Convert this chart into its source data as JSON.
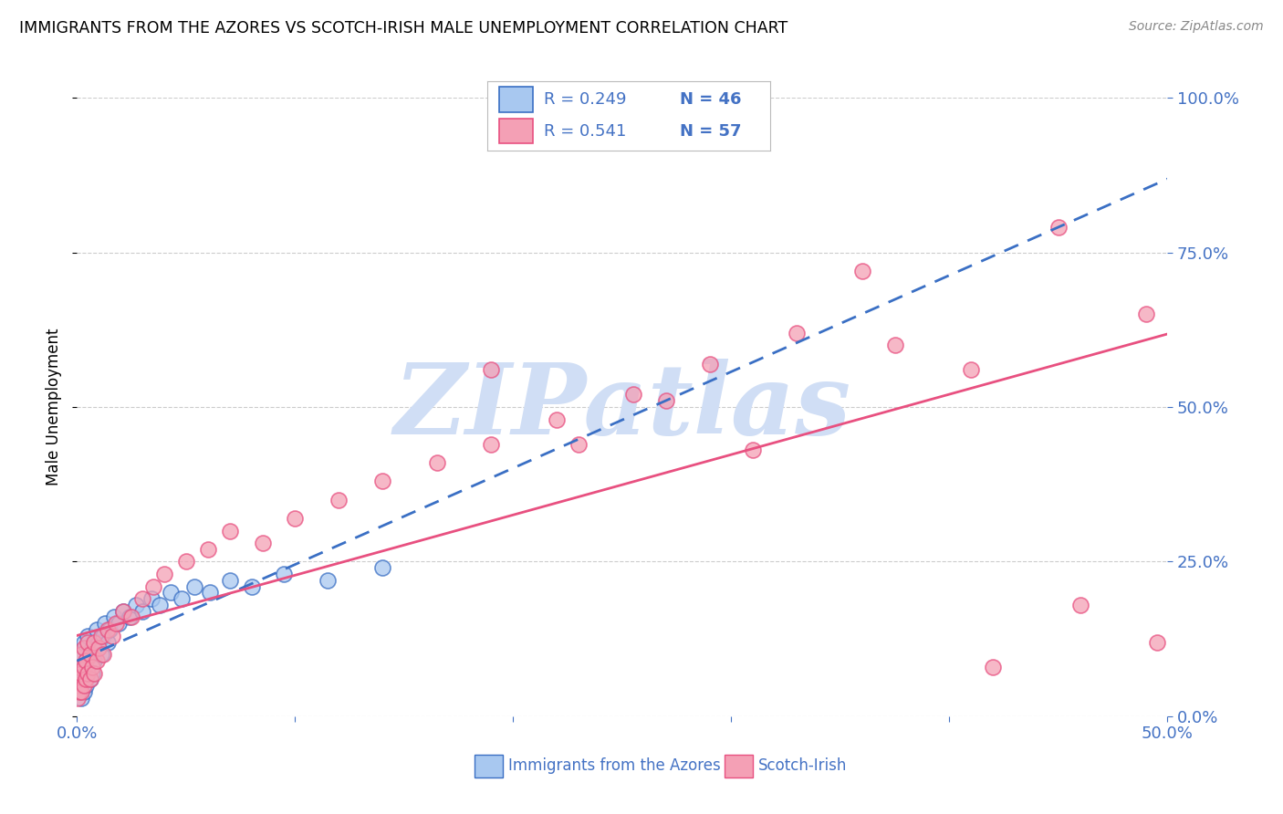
{
  "title": "IMMIGRANTS FROM THE AZORES VS SCOTCH-IRISH MALE UNEMPLOYMENT CORRELATION CHART",
  "source": "Source: ZipAtlas.com",
  "ylabel": "Male Unemployment",
  "xlim": [
    0.0,
    0.5
  ],
  "ylim": [
    0.0,
    1.0
  ],
  "color_blue": "#A8C8F0",
  "color_pink": "#F4A0B5",
  "color_blue_line": "#3A6FC4",
  "color_pink_line": "#E85080",
  "watermark": "ZIPatlas",
  "watermark_color": "#D0DEF5",
  "blue_x": [
    0.0005,
    0.001,
    0.001,
    0.001,
    0.0015,
    0.002,
    0.002,
    0.002,
    0.002,
    0.003,
    0.003,
    0.003,
    0.003,
    0.004,
    0.004,
    0.005,
    0.005,
    0.006,
    0.006,
    0.007,
    0.007,
    0.008,
    0.009,
    0.01,
    0.011,
    0.012,
    0.013,
    0.014,
    0.015,
    0.017,
    0.019,
    0.021,
    0.024,
    0.027,
    0.03,
    0.034,
    0.038,
    0.043,
    0.048,
    0.054,
    0.061,
    0.07,
    0.08,
    0.095,
    0.115,
    0.14
  ],
  "blue_y": [
    0.05,
    0.04,
    0.06,
    0.08,
    0.05,
    0.03,
    0.06,
    0.08,
    0.1,
    0.04,
    0.06,
    0.08,
    0.12,
    0.05,
    0.09,
    0.07,
    0.13,
    0.06,
    0.1,
    0.07,
    0.11,
    0.09,
    0.14,
    0.12,
    0.1,
    0.13,
    0.15,
    0.12,
    0.14,
    0.16,
    0.15,
    0.17,
    0.16,
    0.18,
    0.17,
    0.19,
    0.18,
    0.2,
    0.19,
    0.21,
    0.2,
    0.22,
    0.21,
    0.23,
    0.22,
    0.24
  ],
  "pink_x": [
    0.0003,
    0.0005,
    0.001,
    0.001,
    0.001,
    0.002,
    0.002,
    0.002,
    0.003,
    0.003,
    0.003,
    0.004,
    0.004,
    0.005,
    0.005,
    0.006,
    0.006,
    0.007,
    0.008,
    0.008,
    0.009,
    0.01,
    0.011,
    0.012,
    0.014,
    0.016,
    0.018,
    0.021,
    0.025,
    0.03,
    0.035,
    0.04,
    0.05,
    0.06,
    0.07,
    0.085,
    0.1,
    0.12,
    0.14,
    0.165,
    0.19,
    0.22,
    0.255,
    0.29,
    0.33,
    0.375,
    0.42,
    0.46,
    0.495,
    0.19,
    0.23,
    0.27,
    0.31,
    0.36,
    0.41,
    0.45,
    0.49
  ],
  "pink_y": [
    0.03,
    0.05,
    0.04,
    0.06,
    0.08,
    0.04,
    0.07,
    0.1,
    0.05,
    0.08,
    0.11,
    0.06,
    0.09,
    0.07,
    0.12,
    0.06,
    0.1,
    0.08,
    0.07,
    0.12,
    0.09,
    0.11,
    0.13,
    0.1,
    0.14,
    0.13,
    0.15,
    0.17,
    0.16,
    0.19,
    0.21,
    0.23,
    0.25,
    0.27,
    0.3,
    0.28,
    0.32,
    0.35,
    0.38,
    0.41,
    0.44,
    0.48,
    0.52,
    0.57,
    0.62,
    0.6,
    0.08,
    0.18,
    0.12,
    0.56,
    0.44,
    0.51,
    0.43,
    0.72,
    0.56,
    0.79,
    0.65
  ],
  "grid_color": "#CCCCCC",
  "background_color": "#FFFFFF"
}
